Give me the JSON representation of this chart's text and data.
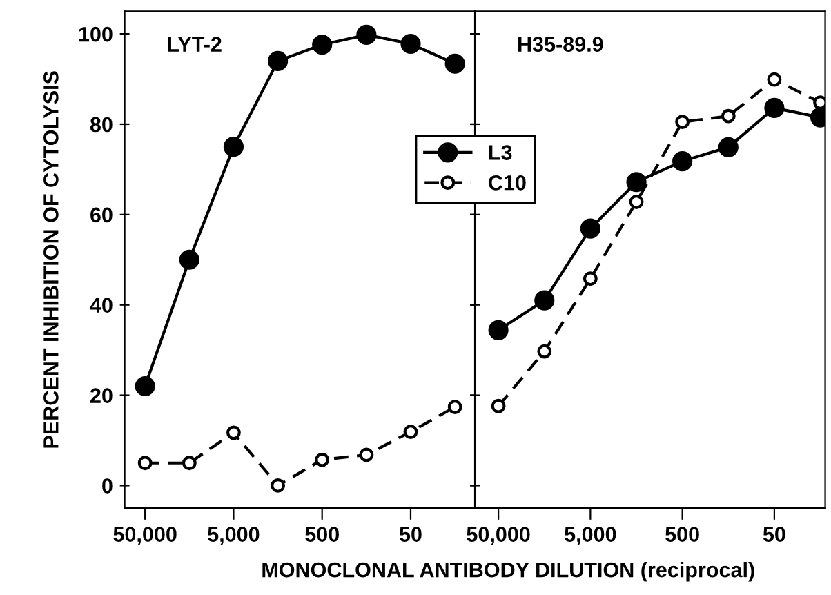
{
  "chart_data": [
    {
      "type": "line",
      "title": "LYT-2",
      "ylabel": "PERCENT INHIBITION OF CYTOLYSIS",
      "xlabel": "MONOCLONAL ANTIBODY DILUTION (reciprocal)",
      "log": "x",
      "x": [
        50000,
        15800,
        5000,
        1580,
        500,
        158,
        50,
        15.8
      ],
      "series": [
        {
          "name": "L3",
          "color": "#000000",
          "line_style": "solid",
          "values": [
            22,
            50,
            75,
            94,
            97.6,
            99.8,
            97.8,
            93.4
          ]
        },
        {
          "name": "C10",
          "color": "#000000",
          "line_style": "dashed",
          "values": [
            5,
            5,
            11.7,
            0,
            5.7,
            6.8,
            11.9,
            17.4
          ]
        }
      ],
      "xlim": [
        85000,
        9.4
      ],
      "xticks": [
        {
          "value": 50000,
          "label": "50,000"
        },
        {
          "value": 5000,
          "label": "5,000"
        },
        {
          "value": 500,
          "label": "500"
        },
        {
          "value": 50,
          "label": "50"
        }
      ],
      "ylim": [
        -5,
        105
      ],
      "yticks": [
        0,
        20,
        40,
        60,
        80,
        100
      ],
      "marker": "circle",
      "legend": "top right",
      "grid": false
    },
    {
      "type": "line",
      "title": "H35-89.9",
      "log": "x",
      "x": [
        50000,
        15800,
        5000,
        1580,
        500,
        158,
        50,
        15.8
      ],
      "series": [
        {
          "color": "#000000",
          "line_style": "solid",
          "values": [
            34.4,
            41,
            56.9,
            67.2,
            71.8,
            74.9,
            83.6,
            81.5
          ]
        },
        {
          "color": "#000000",
          "line_style": "dashed",
          "values": [
            17.6,
            29.7,
            45.8,
            62.8,
            80.5,
            81.8,
            89.9,
            84.8
          ]
        }
      ],
      "xlim": [
        90000,
        14
      ],
      "xticks": [
        {
          "value": 50000,
          "label": "50,000"
        },
        {
          "value": 5000,
          "label": "5,000"
        },
        {
          "value": 500,
          "label": "500"
        },
        {
          "value": 50,
          "label": "50"
        }
      ],
      "ylim": [
        -5,
        105
      ],
      "yticks": [
        {
          "value": 0,
          "label": null
        },
        {
          "value": 20,
          "label": null
        },
        {
          "value": 40,
          "label": null
        },
        {
          "value": 60,
          "label": null
        },
        {
          "value": 80,
          "label": null
        },
        {
          "value": 100,
          "label": null
        }
      ],
      "marker": "circle",
      "tick_labels": "x",
      "grid": false
    }
  ]
}
